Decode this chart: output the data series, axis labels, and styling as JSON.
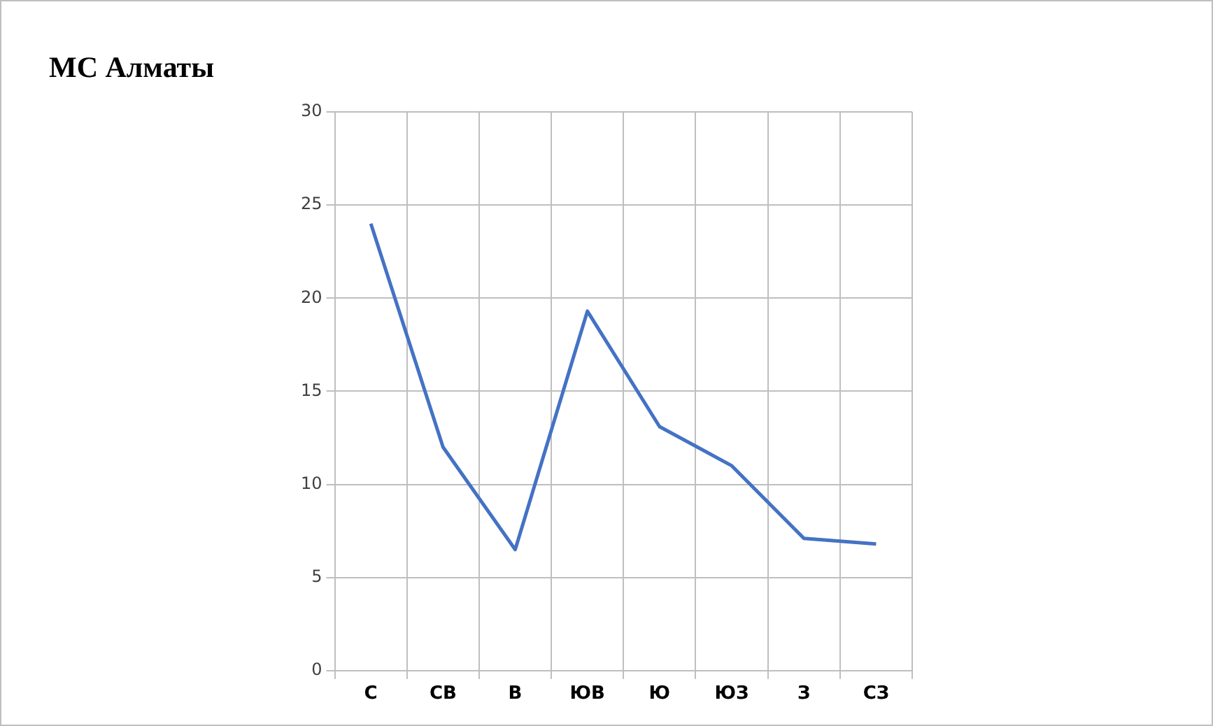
{
  "chart_data": {
    "type": "line",
    "title": "МС  Алматы",
    "categories": [
      "С",
      "СВ",
      "В",
      "ЮВ",
      "Ю",
      "ЮЗ",
      "З",
      "СЗ"
    ],
    "series": [
      {
        "color": "#4472c4",
        "values": [
          24,
          12,
          6.5,
          19.3,
          13.1,
          11,
          7.1,
          6.8
        ]
      }
    ],
    "ylim": [
      0,
      30
    ],
    "yticks": [
      0,
      5,
      10,
      15,
      20,
      25,
      30
    ],
    "grid": true,
    "legend": false,
    "marker": "none",
    "line_style": "solid"
  }
}
